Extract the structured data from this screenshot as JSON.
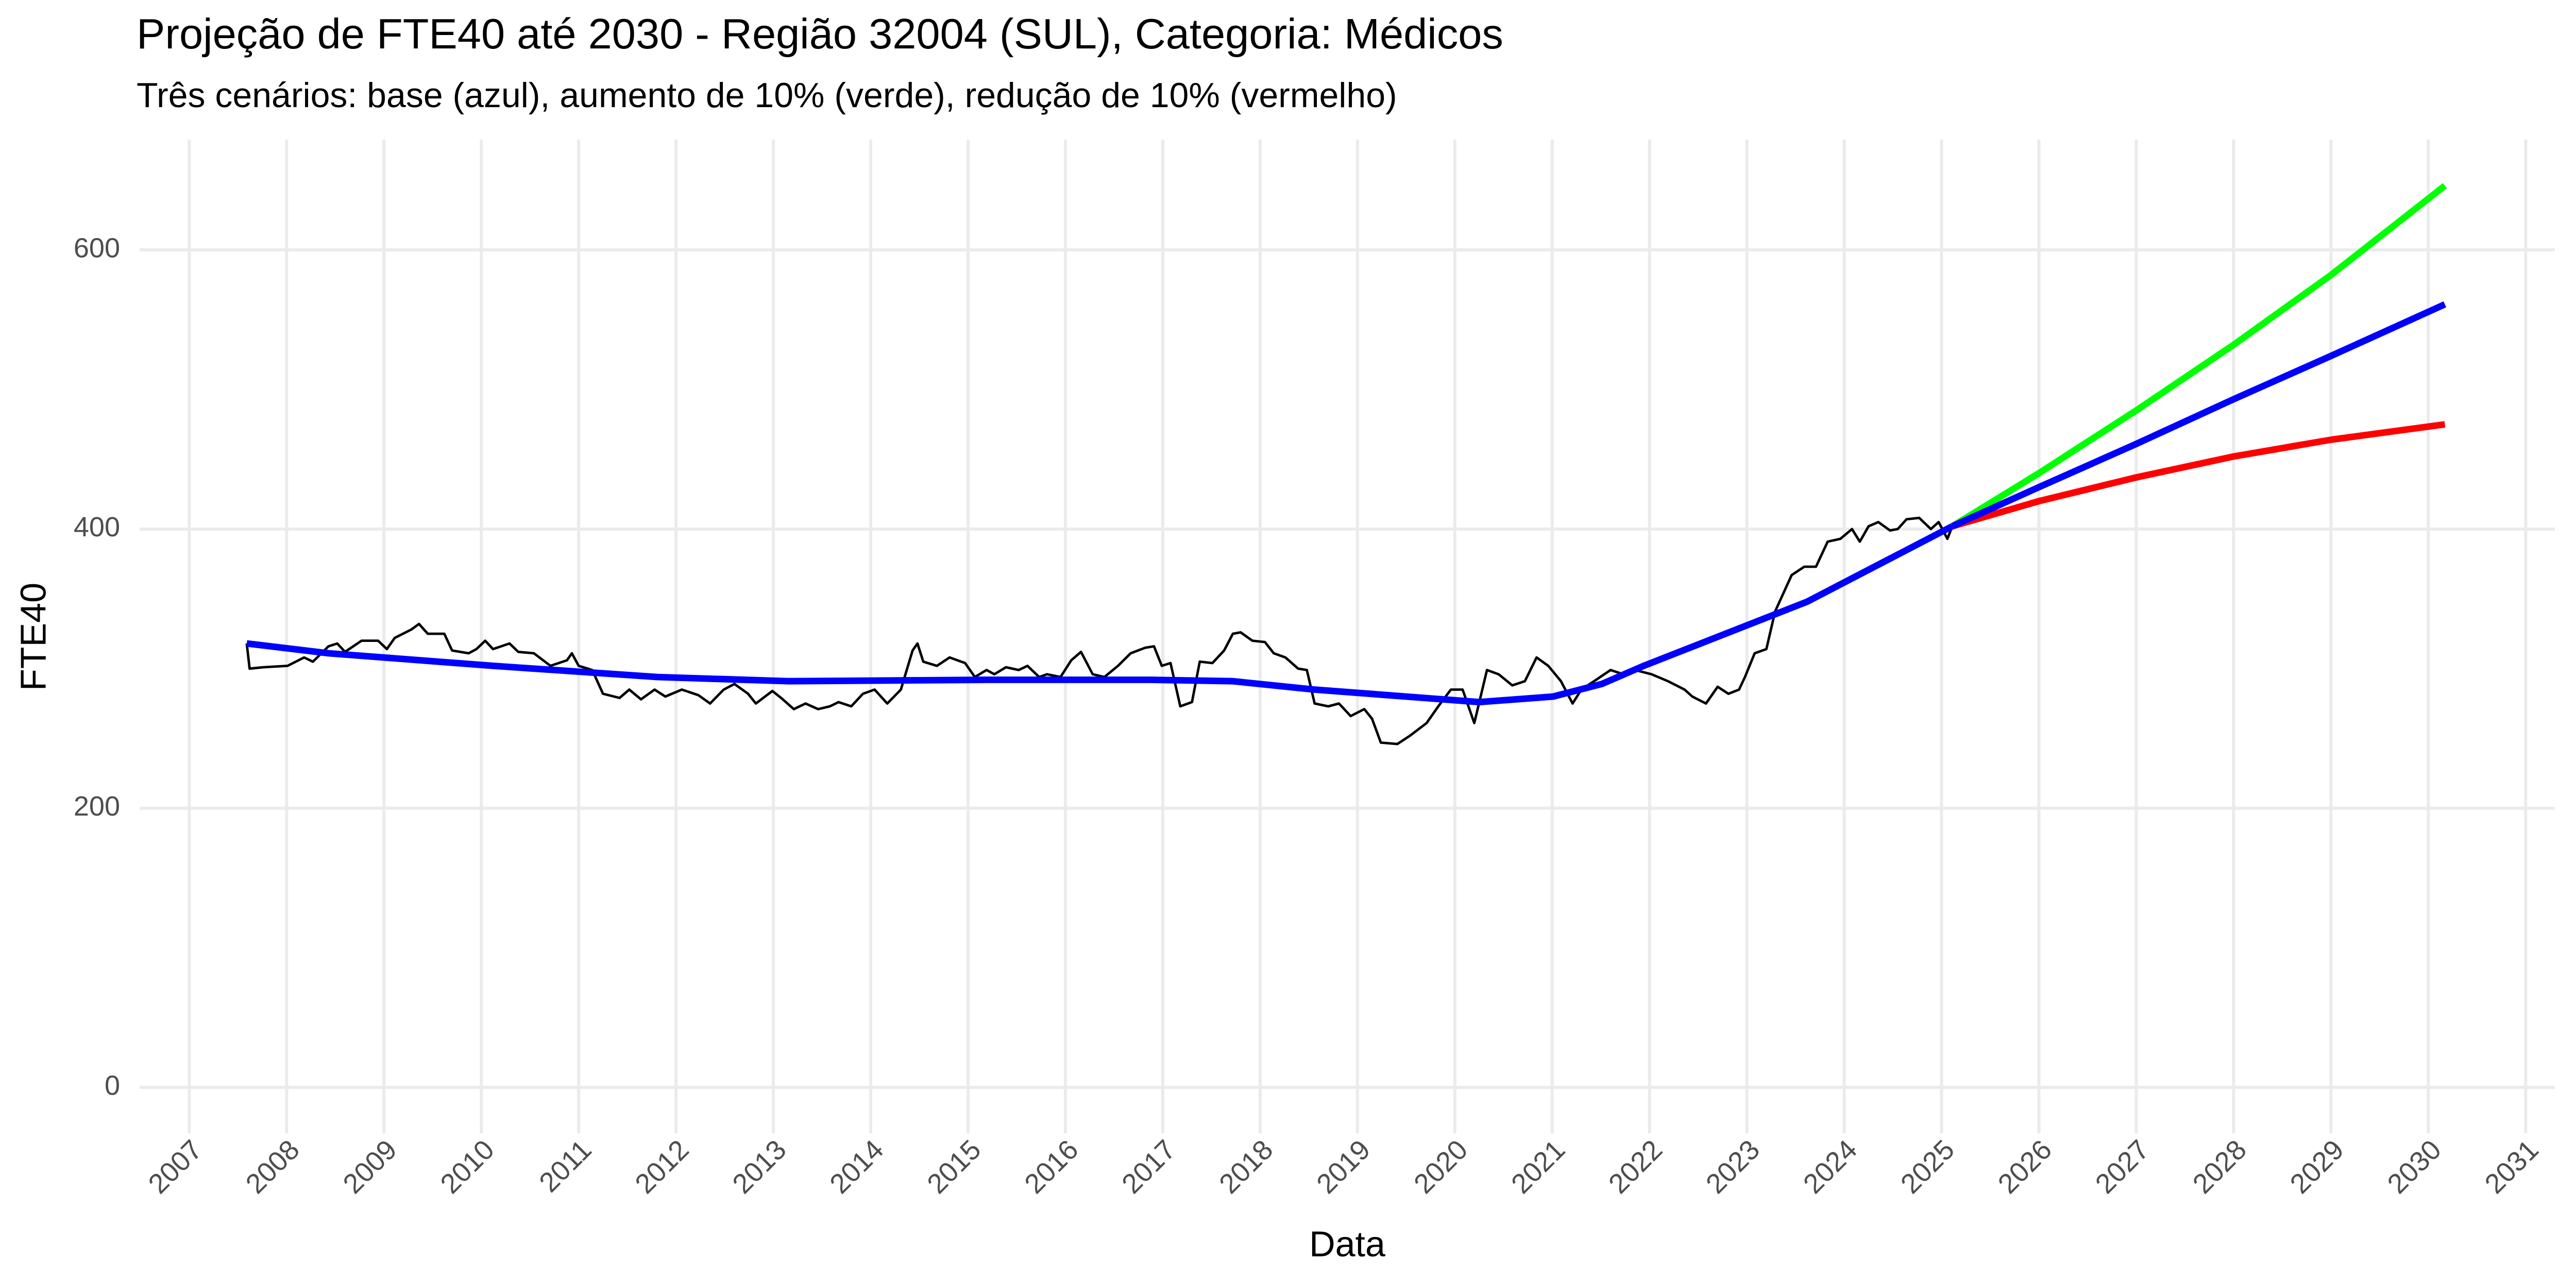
{
  "chart_data": {
    "type": "line",
    "title": "Projeção de FTE40 até 2030 - Região 32004 (SUL), Categoria: Médicos",
    "subtitle": "Três cenários: base (azul), aumento de 10% (verde), redução de 10% (vermelho)",
    "x_label": "Data",
    "y_label": "FTE40",
    "xlim": [
      2006.49,
      2031.3
    ],
    "ylim": [
      -33,
      679
    ],
    "xticks": [
      2007,
      2008,
      2009,
      2010,
      2011,
      2012,
      2013,
      2014,
      2015,
      2016,
      2017,
      2018,
      2019,
      2020,
      2021,
      2022,
      2023,
      2024,
      2025,
      2026,
      2027,
      2028,
      2029,
      2030,
      2031
    ],
    "yticks": [
      0,
      200,
      400,
      600
    ],
    "grid": true,
    "series": [
      {
        "color": "#000000",
        "width": 1.5,
        "x": [
          2007.59,
          2007.62,
          2007.76,
          2008.01,
          2008.18,
          2008.27,
          2008.43,
          2008.52,
          2008.6,
          2008.77,
          2008.94,
          2009.03,
          2009.11,
          2009.28,
          2009.36,
          2009.45,
          2009.62,
          2009.7,
          2009.87,
          2009.95,
          2010.04,
          2010.12,
          2010.29,
          2010.38,
          2010.54,
          2010.71,
          2010.88,
          2010.93,
          2011.0,
          2011.14,
          2011.25,
          2011.42,
          2011.52,
          2011.64,
          2011.78,
          2011.89,
          2012.06,
          2012.23,
          2012.35,
          2012.49,
          2012.6,
          2012.74,
          2012.82,
          2012.99,
          2013.08,
          2013.21,
          2013.33,
          2013.46,
          2013.58,
          2013.67,
          2013.8,
          2013.92,
          2014.04,
          2014.17,
          2014.31,
          2014.43,
          2014.48,
          2014.54,
          2014.68,
          2014.81,
          2014.97,
          2015.07,
          2015.19,
          2015.27,
          2015.39,
          2015.52,
          2015.61,
          2015.73,
          2015.81,
          2015.95,
          2016.06,
          2016.16,
          2016.28,
          2016.4,
          2016.54,
          2016.67,
          2016.82,
          2016.91,
          2016.99,
          2017.08,
          2017.18,
          2017.3,
          2017.38,
          2017.51,
          2017.63,
          2017.72,
          2017.8,
          2017.92,
          2018.05,
          2018.14,
          2018.26,
          2018.39,
          2018.48,
          2018.56,
          2018.7,
          2018.81,
          2018.93,
          2019.07,
          2019.15,
          2019.24,
          2019.41,
          2019.54,
          2019.71,
          2019.83,
          2019.96,
          2020.08,
          2020.2,
          2020.33,
          2020.45,
          2020.59,
          2020.72,
          2020.84,
          2020.96,
          2021.09,
          2021.21,
          2021.3,
          2021.43,
          2021.6,
          2021.73,
          2021.85,
          2022.02,
          2022.19,
          2022.36,
          2022.44,
          2022.58,
          2022.7,
          2022.81,
          2022.92,
          2022.98,
          2023.08,
          2023.2,
          2023.29,
          2023.46,
          2023.59,
          2023.71,
          2023.83,
          2023.96,
          2024.08,
          2024.16,
          2024.25,
          2024.35,
          2024.47,
          2024.55,
          2024.64,
          2024.77,
          2024.89,
          2024.97,
          2025.06,
          2025.11
        ],
        "values": [
          318,
          300,
          301,
          302,
          308,
          305,
          316,
          318,
          312,
          320,
          320,
          314,
          322,
          328,
          332,
          325,
          325,
          313,
          311,
          314,
          320,
          314,
          318,
          312,
          311,
          302,
          306,
          311,
          302,
          299,
          282,
          279,
          285,
          278,
          285,
          280,
          285,
          281,
          275,
          285,
          289,
          282,
          275,
          284,
          279,
          271,
          275,
          271,
          273,
          276,
          273,
          282,
          285,
          275,
          285,
          313,
          318,
          305,
          302,
          308,
          304,
          294,
          299,
          296,
          301,
          299,
          302,
          294,
          296,
          294,
          306,
          312,
          296,
          294,
          302,
          311,
          315,
          316,
          302,
          304,
          273,
          276,
          305,
          304,
          313,
          325,
          326,
          320,
          319,
          311,
          308,
          300,
          299,
          275,
          273,
          275,
          266,
          271,
          264,
          247,
          246,
          252,
          261,
          273,
          285,
          285,
          261,
          299,
          296,
          288,
          291,
          308,
          302,
          291,
          275,
          285,
          291,
          299,
          296,
          299,
          296,
          291,
          285,
          280,
          275,
          287,
          282,
          285,
          294,
          311,
          314,
          341,
          367,
          373,
          373,
          391,
          393,
          400,
          391,
          402,
          405,
          399,
          400,
          407,
          408,
          400,
          405,
          393,
          402
        ]
      },
      {
        "color": "#0000ff",
        "width": 4,
        "x": [
          2007.59,
          2008.43,
          2010.12,
          2011.81,
          2013.16,
          2015.19,
          2016.87,
          2017.72,
          2018.56,
          2020.25,
          2021.01,
          2021.51,
          2021.94,
          2023.62,
          2025.11
        ],
        "values": [
          318,
          311,
          302,
          294,
          291,
          292,
          292,
          291,
          285,
          276,
          280,
          289,
          302,
          348,
          402
        ]
      },
      {
        "color": "#00ff00",
        "width": 4,
        "x": [
          2025.11,
          2026,
          2027,
          2028,
          2029,
          2030.17
        ],
        "values": [
          402,
          440,
          485,
          532,
          582,
          646
        ]
      },
      {
        "color": "#ff0000",
        "width": 4,
        "x": [
          2025.11,
          2026,
          2027,
          2028,
          2029,
          2030.17
        ],
        "values": [
          402,
          420,
          437,
          452,
          464,
          475
        ]
      },
      {
        "color": "#0000ff",
        "width": 4,
        "x": [
          2025.11,
          2026,
          2027,
          2028,
          2029,
          2030.17
        ],
        "values": [
          402,
          430,
          461,
          493,
          524,
          561
        ]
      }
    ]
  }
}
